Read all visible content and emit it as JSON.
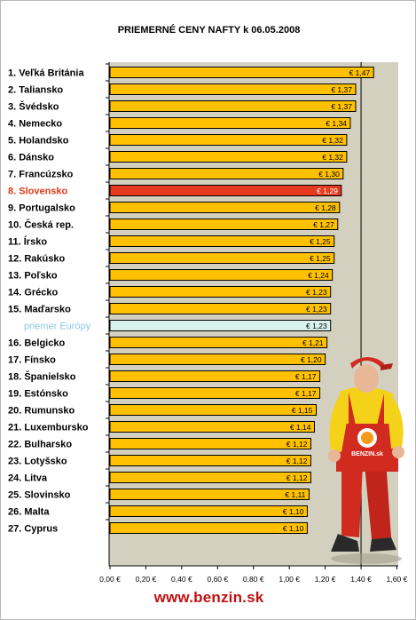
{
  "chart_data": {
    "type": "bar",
    "orientation": "horizontal",
    "title": "PRIEMERNÉ CENY NAFTY k 06.05.2008",
    "categories": [
      "1. Veľká Británia",
      "2. Taliansko",
      "3. Švédsko",
      "4. Nemecko",
      "5. Holandsko",
      "6. Dánsko",
      "7. Francúzsko",
      "8. Slovensko",
      "9. Portugalsko",
      "10. Česká rep.",
      "11. Írsko",
      "12. Rakúsko",
      "13. Poľsko",
      "14. Grécko",
      "15. Maďarsko",
      "priemer Európy",
      "16. Belgicko",
      "17. Fínsko",
      "18. Španielsko",
      "19. Estónsko",
      "20. Rumunsko",
      "21. Luxembursko",
      "22. Bulharsko",
      "23. Lotyšsko",
      "24. Litva",
      "25. Slovinsko",
      "26. Malta",
      "27. Cyprus"
    ],
    "values": [
      1.47,
      1.37,
      1.37,
      1.34,
      1.32,
      1.32,
      1.3,
      1.29,
      1.28,
      1.27,
      1.25,
      1.25,
      1.24,
      1.23,
      1.23,
      1.23,
      1.21,
      1.2,
      1.17,
      1.17,
      1.15,
      1.14,
      1.12,
      1.12,
      1.12,
      1.11,
      1.1,
      1.1
    ],
    "value_labels": [
      "€ 1,47",
      "€ 1,37",
      "€ 1,37",
      "€ 1,34",
      "€ 1,32",
      "€ 1,32",
      "€ 1,30",
      "€ 1,29",
      "€ 1,28",
      "€ 1,27",
      "€ 1,25",
      "€ 1,25",
      "€ 1,24",
      "€ 1,23",
      "€ 1,23",
      "€ 1,23",
      "€ 1,21",
      "€ 1,20",
      "€ 1,17",
      "€ 1,17",
      "€ 1,15",
      "€ 1,14",
      "€ 1,12",
      "€ 1,12",
      "€ 1,12",
      "€ 1,11",
      "€ 1,10",
      "€ 1,10"
    ],
    "highlight": {
      "category": "8. Slovensko",
      "bar_color": "#e63a1e",
      "label_color": "#e03a1a"
    },
    "average": {
      "category": "priemer Európy",
      "bar_color": "#d8f2ee",
      "label_color": "#8cc9e6"
    },
    "bar_color": "#ffc000",
    "plot_background": "#d4d0c0",
    "reference_line": 1.4,
    "xlim": [
      0,
      1.6
    ],
    "x_ticks": [
      0,
      0.2,
      0.4,
      0.6,
      0.8,
      1.0,
      1.2,
      1.4,
      1.6
    ],
    "x_tick_labels": [
      "0,00 €",
      "0,20 €",
      "0,40 €",
      "0,60 €",
      "0,80 €",
      "1,00 €",
      "1,20 €",
      "1,40 €",
      "1,60 €"
    ],
    "grid": false,
    "legend": "none"
  },
  "footer": {
    "url": "www.benzin.sk"
  },
  "mascot": {
    "shirt_text": "BENZIN.sk"
  }
}
